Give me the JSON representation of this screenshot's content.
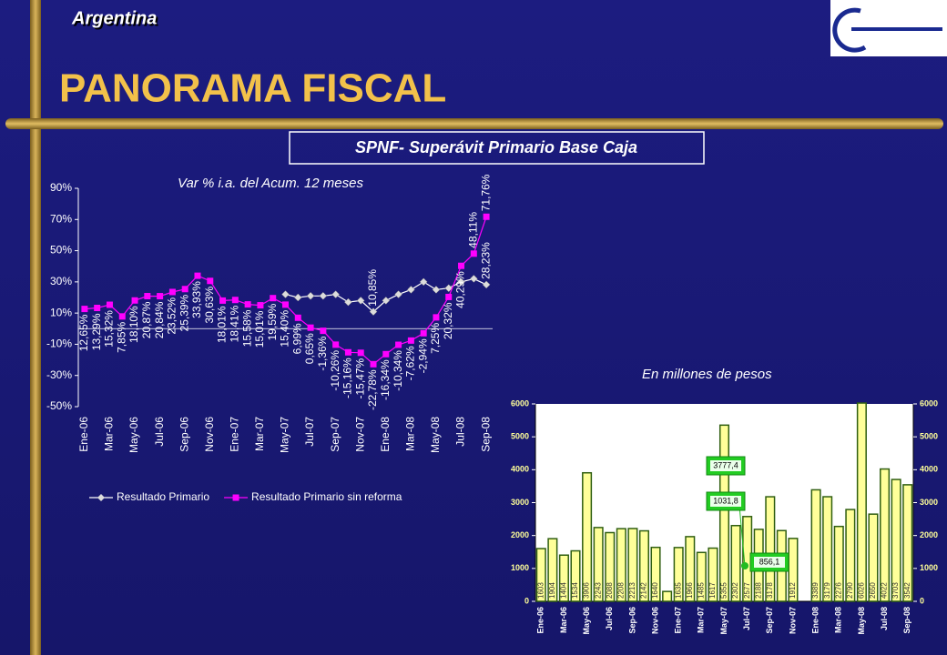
{
  "header": {
    "country": "Argentina",
    "title": "PANORAMA FISCAL",
    "box_title": "SPNF- Superávit Primario Base Caja"
  },
  "chart_data": [
    {
      "type": "line",
      "subtitle": "Var % i.a. del Acum. 12 meses",
      "categories": [
        "Ene-06",
        null,
        "Mar-06",
        null,
        "May-06",
        null,
        "Jul-06",
        null,
        "Sep-06",
        null,
        "Nov-06",
        null,
        "Ene-07",
        null,
        "Mar-07",
        null,
        "May-07",
        null,
        "Jul-07",
        null,
        "Sep-07",
        null,
        "Nov-07",
        null,
        "Ene-08",
        null,
        "Mar-08",
        null,
        "May-08",
        null,
        "Jul-08",
        null,
        "Sep-08"
      ],
      "series": [
        {
          "name": "Resultado Primario",
          "color": "#ffffff",
          "values": [
            null,
            null,
            null,
            null,
            null,
            null,
            null,
            null,
            null,
            null,
            null,
            null,
            null,
            null,
            null,
            null,
            22,
            20,
            21,
            21,
            22,
            17,
            18,
            10.85,
            18,
            22,
            25,
            30,
            25,
            26,
            30,
            32,
            28.23
          ],
          "value_labels": [
            null,
            null,
            null,
            null,
            null,
            null,
            null,
            null,
            null,
            null,
            null,
            null,
            null,
            null,
            null,
            null,
            null,
            null,
            null,
            null,
            null,
            null,
            null,
            "10,85%",
            null,
            null,
            null,
            null,
            null,
            null,
            null,
            null,
            "28,23%"
          ]
        },
        {
          "name": "Resultado Primario sin reforma",
          "color": "#ff00ff",
          "values": [
            12.65,
            13.29,
            15.32,
            7.85,
            18.1,
            20.87,
            20.84,
            23.52,
            25.39,
            33.93,
            30.63,
            18.01,
            18.41,
            15.58,
            15.01,
            19.59,
            15.4,
            6.99,
            0.65,
            -1.36,
            -10.26,
            -15.16,
            -15.47,
            -22.78,
            -16.34,
            -10.34,
            -7.62,
            -2.94,
            7.25,
            20.32,
            40.29,
            48.11,
            71.76
          ],
          "value_labels": [
            "12,65%",
            "13,29%",
            "15,32%",
            "7,85%",
            "18,10%",
            "20,87%",
            "20,84%",
            "23,52%",
            "25,39%",
            "33,93%",
            "30,63%",
            "18,01%",
            "18,41%",
            "15,58%",
            "15,01%",
            "19,59%",
            "15,40%",
            "6,99%",
            "0,65%",
            "-1,36%",
            "-10,26%",
            "-15,16%",
            "-15,47%",
            "-22,78%",
            "-16,34%",
            "-10,34%",
            "-7,62%",
            "-2,94%",
            "7,25%",
            "20,32%",
            "40,29%",
            "48,11%",
            "71,76%"
          ]
        }
      ],
      "ylim": [
        -50,
        90
      ],
      "yticks": [
        {
          "value": -50,
          "label": "-50%"
        },
        {
          "value": -30,
          "label": "-30%"
        },
        {
          "value": -10,
          "label": "-10%"
        },
        {
          "value": 10,
          "label": "10%"
        },
        {
          "value": 30,
          "label": "30%"
        },
        {
          "value": 50,
          "label": "50%"
        },
        {
          "value": 70,
          "label": "70%"
        },
        {
          "value": 90,
          "label": "90%"
        }
      ],
      "legend": "bottom"
    },
    {
      "type": "bar",
      "subtitle": "En millones de pesos",
      "categories": [
        "Ene-06",
        null,
        "Mar-06",
        null,
        "May-06",
        null,
        "Jul-06",
        null,
        "Sep-06",
        null,
        "Nov-06",
        null,
        "Ene-07",
        null,
        "Mar-07",
        null,
        "May-07",
        null,
        "Jul-07",
        null,
        "Sep-07",
        null,
        "Nov-07",
        null,
        "Ene-08",
        null,
        "Mar-08",
        null,
        "May-08",
        null,
        "Jul-08",
        null,
        "Sep-08"
      ],
      "values": [
        1603,
        1904,
        1404,
        1534,
        3906,
        2243,
        2088,
        2208,
        2213,
        2142,
        1640,
        300,
        1635,
        1966,
        1485,
        1617,
        5355,
        2302,
        2577,
        2188,
        3178,
        2150,
        1912,
        null,
        3389,
        3179,
        2276,
        2790,
        6026,
        2650,
        4022,
        3703,
        3542
      ],
      "value_labels": [
        "1603",
        "1904",
        "1404",
        "1534",
        "3906",
        "2243",
        "2088",
        "2208",
        "2213",
        "2142",
        "1640",
        null,
        "1635",
        "1966",
        "1485",
        "1617",
        "5355",
        "2302",
        "2577",
        "2188",
        "3178",
        null,
        "1912",
        null,
        "3389",
        "3179",
        "2276",
        "2790",
        "6026",
        "2650",
        "4022",
        "3703",
        "3542"
      ],
      "color": "#ffff99",
      "ylim": [
        0,
        6000
      ],
      "yticks": [
        0,
        1000,
        2000,
        3000,
        4000,
        5000,
        6000
      ],
      "y2lim": [
        0,
        6000
      ],
      "y2ticks": [
        0,
        1000,
        2000,
        3000,
        4000,
        5000,
        6000
      ],
      "annotations": [
        "3777,4",
        "1031,8",
        "856,1"
      ]
    }
  ]
}
